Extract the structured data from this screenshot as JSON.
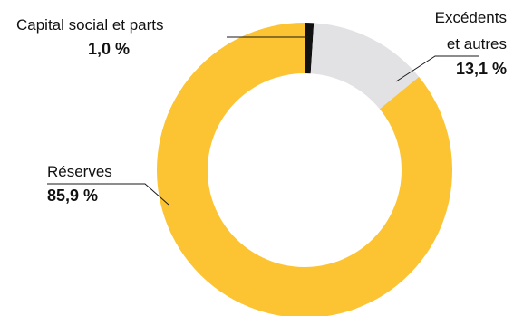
{
  "chart_data": {
    "type": "pie",
    "variant": "donut",
    "slices": [
      {
        "label": "Capital social et parts",
        "value": 1.0,
        "display": "1,0 %",
        "color": "#111111"
      },
      {
        "label": "Excédents et autres",
        "label_lines": [
          "Excédents",
          "et autres"
        ],
        "value": 13.1,
        "display": "13,1 %",
        "color": "#e2e2e4"
      },
      {
        "label": "Réserves",
        "value": 85.9,
        "display": "85,9 %",
        "color": "#fcc332"
      }
    ]
  }
}
